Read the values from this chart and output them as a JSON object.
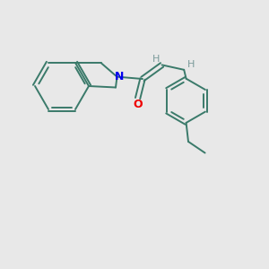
{
  "background_color": "#e8e8e8",
  "bond_color": "#3a7a6a",
  "N_color": "#0000ee",
  "O_color": "#ee0000",
  "H_color": "#7a9a9a",
  "line_width": 1.4,
  "figsize": [
    3.0,
    3.0
  ],
  "dpi": 100,
  "xlim": [
    0,
    10
  ],
  "ylim": [
    0,
    10
  ]
}
